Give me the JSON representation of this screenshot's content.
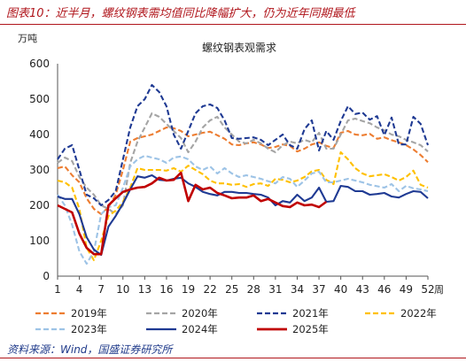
{
  "header": {
    "figure_title": "图表10：近半月，螺纹钢表需均值同比降幅扩大，仍为近年同期最低"
  },
  "footer": {
    "source": "资料来源：Wind，国盛证券研究所"
  },
  "chart_data": {
    "type": "line",
    "title": "螺纹钢表观需求",
    "ylabel": "万吨",
    "xlabel": "周",
    "ylim": [
      0,
      600
    ],
    "yticks": [
      0,
      100,
      200,
      300,
      400,
      500,
      600
    ],
    "xlim": [
      1,
      52
    ],
    "xticks": [
      1,
      4,
      7,
      10,
      13,
      16,
      19,
      22,
      25,
      28,
      31,
      34,
      37,
      40,
      43,
      46,
      49,
      52
    ],
    "grid": false,
    "legend_position": "bottom",
    "series": [
      {
        "name": "2019年",
        "color": "#ed7d31",
        "dash": "dash",
        "x": [
          1,
          2,
          3,
          4,
          5,
          6,
          7,
          8,
          9,
          10,
          11,
          12,
          13,
          14,
          15,
          16,
          17,
          18,
          19,
          20,
          21,
          22,
          23,
          24,
          25,
          26,
          27,
          28,
          29,
          30,
          31,
          32,
          33,
          34,
          35,
          36,
          37,
          38,
          39,
          40,
          41,
          42,
          43,
          44,
          45,
          46,
          47,
          48,
          49,
          50,
          51,
          52
        ],
        "values": [
          305,
          310,
          285,
          265,
          220,
          190,
          175,
          195,
          230,
          300,
          380,
          390,
          395,
          400,
          410,
          420,
          418,
          410,
          395,
          400,
          405,
          408,
          398,
          388,
          372,
          370,
          375,
          378,
          372,
          362,
          365,
          372,
          368,
          352,
          360,
          372,
          378,
          368,
          362,
          405,
          410,
          400,
          398,
          402,
          388,
          392,
          384,
          378,
          370,
          358,
          342,
          322
        ]
      },
      {
        "name": "2020年",
        "color": "#a5a5a5",
        "dash": "dash",
        "x": [
          1,
          2,
          3,
          4,
          5,
          6,
          7,
          8,
          9,
          10,
          11,
          12,
          13,
          14,
          15,
          16,
          17,
          18,
          19,
          20,
          21,
          22,
          23,
          24,
          25,
          26,
          27,
          28,
          29,
          30,
          31,
          32,
          33,
          34,
          35,
          36,
          37,
          38,
          39,
          40,
          41,
          42,
          43,
          44,
          45,
          46,
          47,
          48,
          49,
          50,
          51,
          52
        ],
        "values": [
          320,
          335,
          325,
          280,
          250,
          230,
          200,
          190,
          175,
          200,
          320,
          380,
          420,
          460,
          450,
          430,
          410,
          390,
          350,
          380,
          420,
          440,
          450,
          420,
          400,
          380,
          375,
          385,
          375,
          360,
          350,
          370,
          380,
          375,
          385,
          378,
          405,
          360,
          360,
          400,
          440,
          445,
          438,
          432,
          420,
          412,
          400,
          395,
          385,
          378,
          370,
          352
        ]
      },
      {
        "name": "2021年",
        "color": "#1f3a93",
        "dash": "dash",
        "x": [
          1,
          2,
          3,
          4,
          5,
          6,
          7,
          8,
          9,
          10,
          11,
          12,
          13,
          14,
          15,
          16,
          17,
          18,
          19,
          20,
          21,
          22,
          23,
          24,
          25,
          26,
          27,
          28,
          29,
          30,
          31,
          32,
          33,
          34,
          35,
          36,
          37,
          38,
          39,
          40,
          41,
          42,
          43,
          44,
          45,
          46,
          47,
          48,
          49,
          50,
          51,
          52
        ],
        "values": [
          330,
          360,
          370,
          300,
          230,
          220,
          200,
          215,
          240,
          330,
          420,
          480,
          500,
          540,
          520,
          480,
          400,
          360,
          410,
          460,
          480,
          485,
          475,
          440,
          390,
          388,
          390,
          392,
          385,
          370,
          385,
          400,
          370,
          360,
          415,
          440,
          355,
          410,
          385,
          438,
          480,
          458,
          462,
          442,
          452,
          398,
          448,
          372,
          372,
          450,
          430,
          370
        ]
      },
      {
        "name": "2022年",
        "color": "#ffc000",
        "dash": "dash",
        "x": [
          1,
          2,
          3,
          4,
          5,
          6,
          7,
          8,
          9,
          10,
          11,
          12,
          13,
          14,
          15,
          16,
          17,
          18,
          19,
          20,
          21,
          22,
          23,
          24,
          25,
          26,
          27,
          28,
          29,
          30,
          31,
          32,
          33,
          34,
          35,
          36,
          37,
          38,
          39,
          40,
          41,
          42,
          43,
          44,
          45,
          46,
          47,
          48,
          49,
          50,
          51,
          52
        ],
        "values": [
          270,
          265,
          250,
          190,
          80,
          45,
          100,
          170,
          185,
          210,
          250,
          305,
          300,
          300,
          300,
          298,
          305,
          295,
          312,
          300,
          288,
          270,
          262,
          262,
          258,
          260,
          252,
          260,
          262,
          255,
          275,
          272,
          265,
          270,
          280,
          296,
          300,
          272,
          260,
          350,
          330,
          305,
          290,
          282,
          285,
          288,
          280,
          270,
          280,
          298,
          258,
          250
        ]
      },
      {
        "name": "2023年",
        "color": "#9dc3e6",
        "dash": "dash",
        "x": [
          1,
          2,
          3,
          4,
          5,
          6,
          7,
          8,
          9,
          10,
          11,
          12,
          13,
          14,
          15,
          16,
          17,
          18,
          19,
          20,
          21,
          22,
          23,
          24,
          25,
          26,
          27,
          28,
          29,
          30,
          31,
          32,
          33,
          34,
          35,
          36,
          37,
          38,
          39,
          40,
          41,
          42,
          43,
          44,
          45,
          46,
          47,
          48,
          49,
          50,
          51,
          52
        ],
        "values": [
          230,
          200,
          145,
          70,
          35,
          70,
          175,
          195,
          200,
          250,
          310,
          330,
          340,
          335,
          330,
          320,
          335,
          338,
          330,
          310,
          300,
          310,
          290,
          305,
          290,
          280,
          285,
          280,
          275,
          268,
          262,
          280,
          275,
          252,
          270,
          290,
          295,
          265,
          265,
          270,
          275,
          270,
          265,
          258,
          254,
          250,
          260,
          240,
          255,
          248,
          245,
          240
        ]
      },
      {
        "name": "2024年",
        "color": "#1f3a93",
        "dash": "solid",
        "x": [
          1,
          2,
          3,
          4,
          5,
          6,
          7,
          8,
          9,
          10,
          11,
          12,
          13,
          14,
          15,
          16,
          17,
          18,
          19,
          20,
          21,
          22,
          23,
          24,
          25,
          26,
          27,
          28,
          29,
          30,
          31,
          32,
          33,
          34,
          35,
          36,
          37,
          38,
          39,
          40,
          41,
          42,
          43,
          44,
          45,
          46,
          47,
          48,
          49,
          50,
          51,
          52
        ],
        "values": [
          225,
          218,
          218,
          175,
          110,
          75,
          60,
          140,
          170,
          205,
          245,
          282,
          278,
          285,
          272,
          270,
          275,
          278,
          262,
          252,
          238,
          232,
          228,
          238,
          238,
          235,
          235,
          232,
          230,
          222,
          200,
          212,
          208,
          230,
          212,
          222,
          250,
          210,
          212,
          255,
          252,
          240,
          240,
          230,
          232,
          235,
          225,
          222,
          232,
          240,
          238,
          220
        ]
      },
      {
        "name": "2025年",
        "color": "#c00000",
        "dash": "solid",
        "x": [
          1,
          2,
          3,
          4,
          5,
          6,
          7,
          8,
          9,
          10,
          11,
          12,
          13,
          14,
          15,
          16,
          17,
          18,
          19,
          20,
          21,
          22,
          23,
          24,
          25,
          26,
          27,
          28,
          29,
          30,
          31,
          32,
          33,
          34,
          35,
          36,
          37,
          38
        ],
        "values": [
          200,
          190,
          180,
          120,
          80,
          62,
          62,
          200,
          220,
          238,
          245,
          250,
          252,
          262,
          278,
          270,
          272,
          292,
          212,
          258,
          245,
          250,
          235,
          228,
          220,
          222,
          222,
          228,
          212,
          218,
          208,
          198,
          195,
          208,
          200,
          202,
          195,
          210
        ]
      }
    ]
  }
}
